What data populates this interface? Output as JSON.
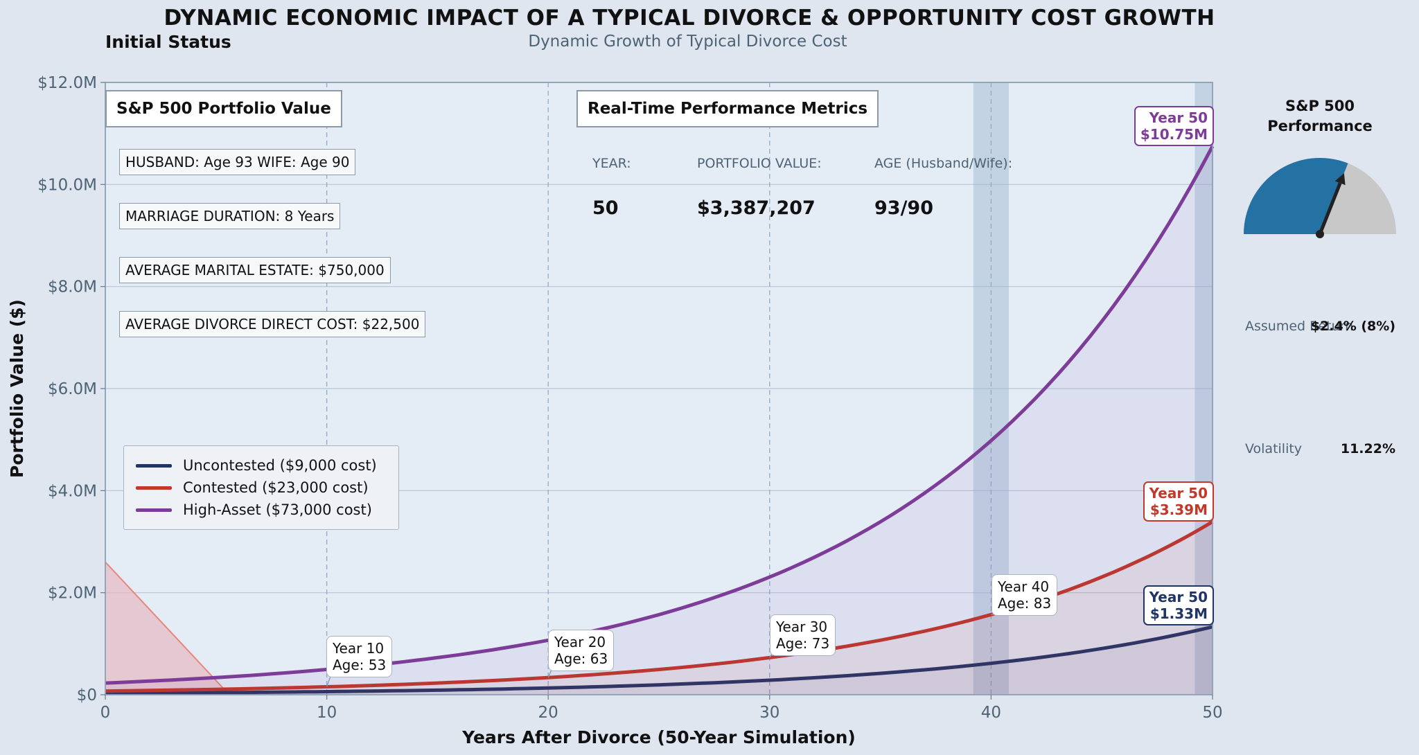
{
  "header": {
    "title": "DYNAMIC ECONOMIC IMPACT OF A TYPICAL DIVORCE & OPPORTUNITY COST GROWTH",
    "status": "Initial Status",
    "subtitle": "Dynamic Growth of Typical Divorce Cost"
  },
  "info_panel": {
    "title": "S&P 500 Portfolio Value",
    "rows": [
      "HUSBAND: Age 93   WIFE: Age 90",
      "MARRIAGE DURATION: 8 Years",
      "AVERAGE MARITAL ESTATE: $750,000",
      "AVERAGE DIVORCE DIRECT COST: $22,500"
    ]
  },
  "metrics": {
    "title": "Real-Time Performance Metrics",
    "year_label": "YEAR:",
    "year_value": "50",
    "portfolio_label": "PORTFOLIO VALUE:",
    "portfolio_value": "$3,387,207",
    "age_label": "AGE (Husband/Wife):",
    "age_value": "93/90"
  },
  "callouts": [
    {
      "year": "Year 10",
      "age": "Age: 53"
    },
    {
      "year": "Year 20",
      "age": "Age: 63"
    },
    {
      "year": "Year 30",
      "age": "Age: 73"
    },
    {
      "year": "Year 40",
      "age": "Age: 83"
    }
  ],
  "end_labels": {
    "high_asset": {
      "year": "Year 50",
      "value": "$10.75M"
    },
    "contested": {
      "year": "Year 50",
      "value": "$3.39M"
    },
    "uncontested": {
      "year": "Year 50",
      "value": "$1.33M"
    }
  },
  "gauge": {
    "title_line1": "S&P 500",
    "title_line2": "Performance",
    "return_label": "Assumed Return",
    "return_value": "$2.4% (8%)",
    "volatility_label": "Volatility",
    "volatility_value": "11.22%",
    "level": 0.62
  },
  "colors": {
    "uncontested": "#1f3566",
    "contested": "#c0392b",
    "high_asset": "#7d3c98",
    "gauge": "#2471a3"
  },
  "chart_data": {
    "type": "line",
    "title": "DYNAMIC ECONOMIC IMPACT OF A TYPICAL DIVORCE & OPPORTUNITY COST GROWTH",
    "subtitle": "Dynamic Growth of Typical Divorce Cost",
    "xlabel": "Years After Divorce (50-Year Simulation)",
    "ylabel": "Portfolio Value ($)",
    "xlim": [
      0,
      50
    ],
    "ylim": [
      0,
      12000000
    ],
    "xticks": [
      0,
      10,
      20,
      30,
      40,
      50
    ],
    "xtick_labels": [
      "0",
      "10",
      "20",
      "30",
      "40",
      "50"
    ],
    "yticks": [
      0,
      2000000,
      4000000,
      6000000,
      8000000,
      10000000,
      12000000
    ],
    "ytick_labels": [
      "$0",
      "$2.0M",
      "$4.0M",
      "$6.0M",
      "$8.0M",
      "$10.0M",
      "$12.0M"
    ],
    "grid": true,
    "legend_position": "middle-left",
    "growth_rate": 0.08,
    "series": [
      {
        "name": "Uncontested  ($9,000 cost)",
        "key": "uncontested",
        "initial_cost": 9000,
        "end_value": 1330000
      },
      {
        "name": "Contested  ($23,000 cost)",
        "key": "contested",
        "initial_cost": 23000,
        "end_value": 3390000
      },
      {
        "name": "High-Asset  ($73,000 cost)",
        "key": "high_asset",
        "initial_cost": 73000,
        "end_value": 10750000
      }
    ],
    "milestones": [
      10,
      20,
      30,
      40
    ],
    "highlight_years": [
      40,
      50
    ],
    "early_cost_region": {
      "start_value": 2600000,
      "end_year": 5.6
    }
  }
}
